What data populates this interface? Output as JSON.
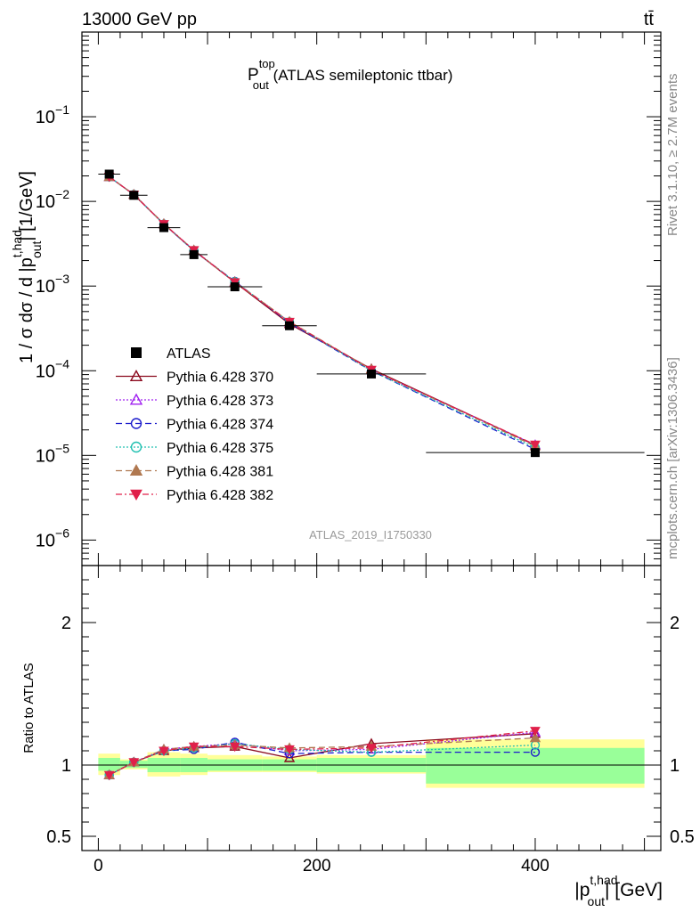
{
  "header": {
    "energy_label": "13000 GeV pp",
    "process_label": "tt̄"
  },
  "side_labels": {
    "rivet": "Rivet 3.1.10, ≥ 2.7M events",
    "mcplots": "mcplots.cern.ch [arXiv:1306.3436]"
  },
  "chart_data": {
    "type": "line",
    "title_main": "P",
    "title_sup": "top",
    "title_sub": "out",
    "title_rest": " (ATLAS semileptonic ttbar)",
    "analysis_id": "ATLAS_2019_I1750330",
    "ylabel_main": "1 / σ dσ / d |p",
    "ylabel_sup": "t,had",
    "ylabel_sub": "out",
    "ylabel_rest": "| [1/GeV]",
    "xlabel_main": "|p",
    "xlabel_sup": "t,had",
    "xlabel_sub": "out",
    "xlabel_rest": "| [GeV]",
    "ratio_ylabel": "Ratio to ATLAS",
    "log_y": true,
    "xlim": [
      -15,
      515
    ],
    "ylim": [
      5e-07,
      1.0
    ],
    "ratio_ylim": [
      0.4,
      2.4
    ],
    "x_ticks": [
      0,
      200,
      400
    ],
    "x_tick_labels": [
      "0",
      "200",
      "400"
    ],
    "y_ticks": [
      1e-06,
      1e-05,
      0.0001,
      0.001,
      0.01,
      0.1
    ],
    "y_tick_labels": [
      {
        "base": "10",
        "exp": "−6"
      },
      {
        "base": "10",
        "exp": "−5"
      },
      {
        "base": "10",
        "exp": "−4"
      },
      {
        "base": "10",
        "exp": "−3"
      },
      {
        "base": "10",
        "exp": "−2"
      },
      {
        "base": "10",
        "exp": "−1"
      }
    ],
    "ratio_ticks": [
      0.5,
      1,
      2
    ],
    "ratio_tick_labels": [
      "0.5",
      "1",
      "2"
    ],
    "legend_position": "middle-left",
    "bins": [
      [
        0,
        20
      ],
      [
        20,
        45
      ],
      [
        45,
        75
      ],
      [
        75,
        100
      ],
      [
        100,
        150
      ],
      [
        150,
        200
      ],
      [
        200,
        300
      ],
      [
        300,
        500
      ]
    ],
    "x": [
      10,
      32.5,
      60,
      87.5,
      125,
      175,
      250,
      400
    ],
    "data": {
      "name": "ATLAS",
      "values": [
        0.021,
        0.0118,
        0.0049,
        0.00235,
        0.00098,
        0.00034,
        9.15e-05,
        1.08e-05
      ]
    },
    "band_stat": [
      [
        0.96,
        1.05
      ],
      [
        0.98,
        1.03
      ],
      [
        0.95,
        1.05
      ],
      [
        0.95,
        1.05
      ],
      [
        0.96,
        1.04
      ],
      [
        0.96,
        1.04
      ],
      [
        0.95,
        1.05
      ],
      [
        0.87,
        1.12
      ]
    ],
    "band_total": [
      [
        0.93,
        1.08
      ],
      [
        0.97,
        1.04
      ],
      [
        0.92,
        1.09
      ],
      [
        0.93,
        1.08
      ],
      [
        0.95,
        1.07
      ],
      [
        0.95,
        1.06
      ],
      [
        0.94,
        1.07
      ],
      [
        0.84,
        1.18
      ]
    ],
    "series": [
      {
        "name": "Pythia 6.428 370",
        "color": "#8b0a1e",
        "dash": "",
        "marker": "triangle-up-open",
        "ratio": [
          0.93,
          1.02,
          1.1,
          1.12,
          1.13,
          1.05,
          1.15,
          1.22
        ]
      },
      {
        "name": "Pythia 6.428 373",
        "color": "#a020f0",
        "dash": "2,2",
        "marker": "triangle-up-open",
        "ratio": [
          0.93,
          1.02,
          1.11,
          1.13,
          1.15,
          1.1,
          1.11,
          1.23
        ]
      },
      {
        "name": "Pythia 6.428 374",
        "color": "#1c1ccc",
        "dash": "7,4",
        "marker": "circle-open",
        "ratio": [
          0.93,
          1.02,
          1.1,
          1.11,
          1.16,
          1.08,
          1.09,
          1.09
        ]
      },
      {
        "name": "Pythia 6.428 375",
        "color": "#20c0b0",
        "dash": "2,2",
        "marker": "circle-open",
        "ratio": [
          0.93,
          1.02,
          1.1,
          1.12,
          1.15,
          1.11,
          1.09,
          1.14
        ]
      },
      {
        "name": "Pythia 6.428 381",
        "color": "#b07850",
        "dash": "7,4",
        "marker": "triangle-up-filled",
        "ratio": [
          0.93,
          1.02,
          1.11,
          1.13,
          1.14,
          1.12,
          1.13,
          1.19
        ]
      },
      {
        "name": "Pythia 6.428 382",
        "color": "#e0204a",
        "dash": "7,3,2,3",
        "marker": "triangle-down-filled",
        "ratio": [
          0.93,
          1.02,
          1.1,
          1.13,
          1.13,
          1.11,
          1.12,
          1.24
        ]
      }
    ]
  }
}
